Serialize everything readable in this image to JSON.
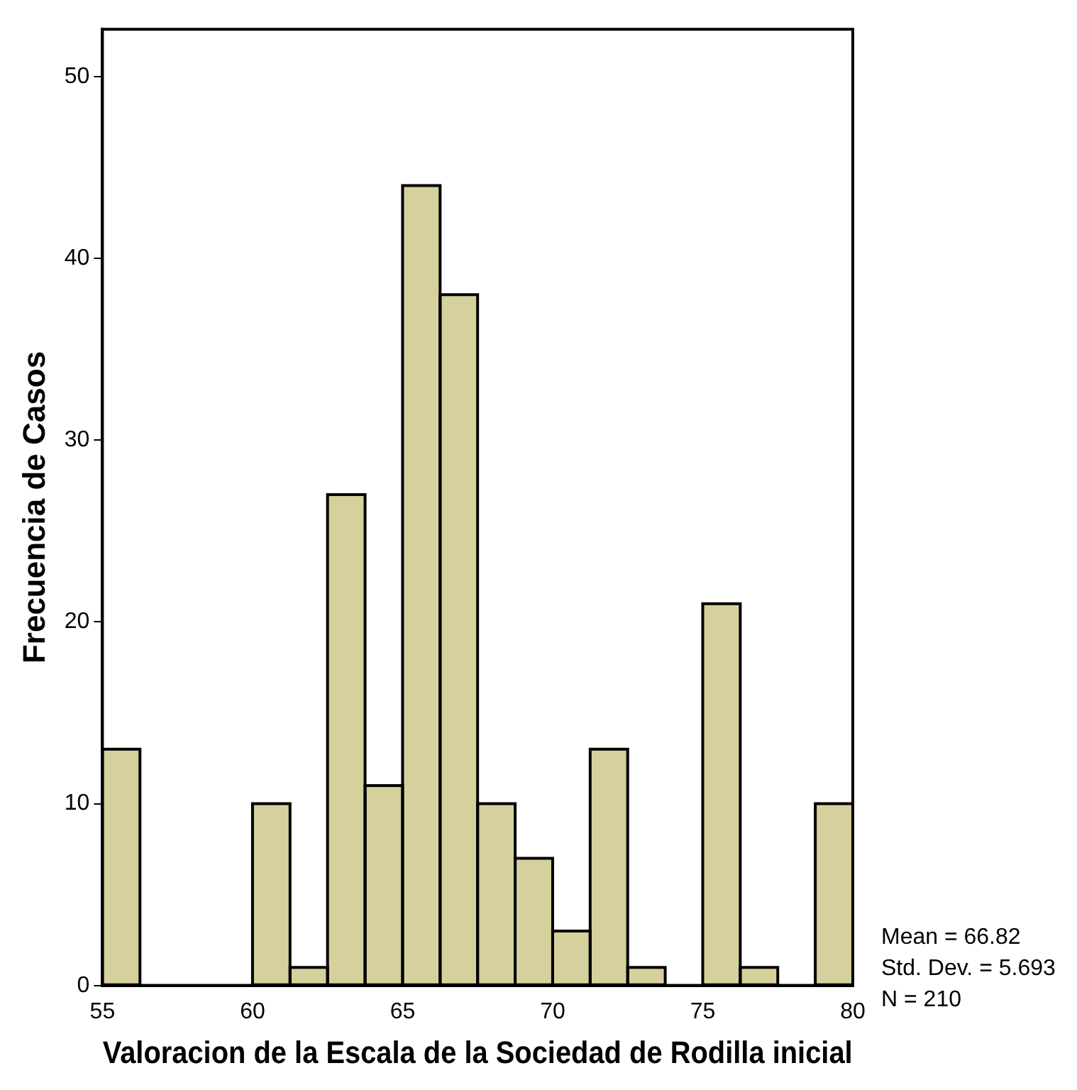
{
  "chart_data": {
    "type": "histogram",
    "xlabel": "Valoracion de la Escala de la Sociedad de Rodilla inicial",
    "ylabel": "Frecuencia de Casos",
    "bins": [
      55,
      56.25,
      57.5,
      58.75,
      60,
      61.25,
      62.5,
      63.75,
      65,
      66.25,
      67.5,
      68.75,
      70,
      71.25,
      72.5,
      73.75,
      75,
      76.25,
      77.5,
      78.75,
      80
    ],
    "values": [
      13,
      0,
      0,
      0,
      10,
      1,
      27,
      11,
      44,
      38,
      10,
      7,
      3,
      13,
      1,
      0,
      21,
      1,
      0,
      10
    ],
    "color": "#d6d09c",
    "xlim": [
      55,
      80
    ],
    "xticks": [
      55,
      60,
      65,
      70,
      75,
      80
    ],
    "ylim": [
      0,
      52.6
    ],
    "yticks": [
      0,
      10,
      20,
      30,
      40,
      50
    ],
    "grid": false,
    "legend": false,
    "annotations": [
      "Mean = 66.82",
      "Std. Dev. = 5.693",
      "N = 210"
    ]
  }
}
